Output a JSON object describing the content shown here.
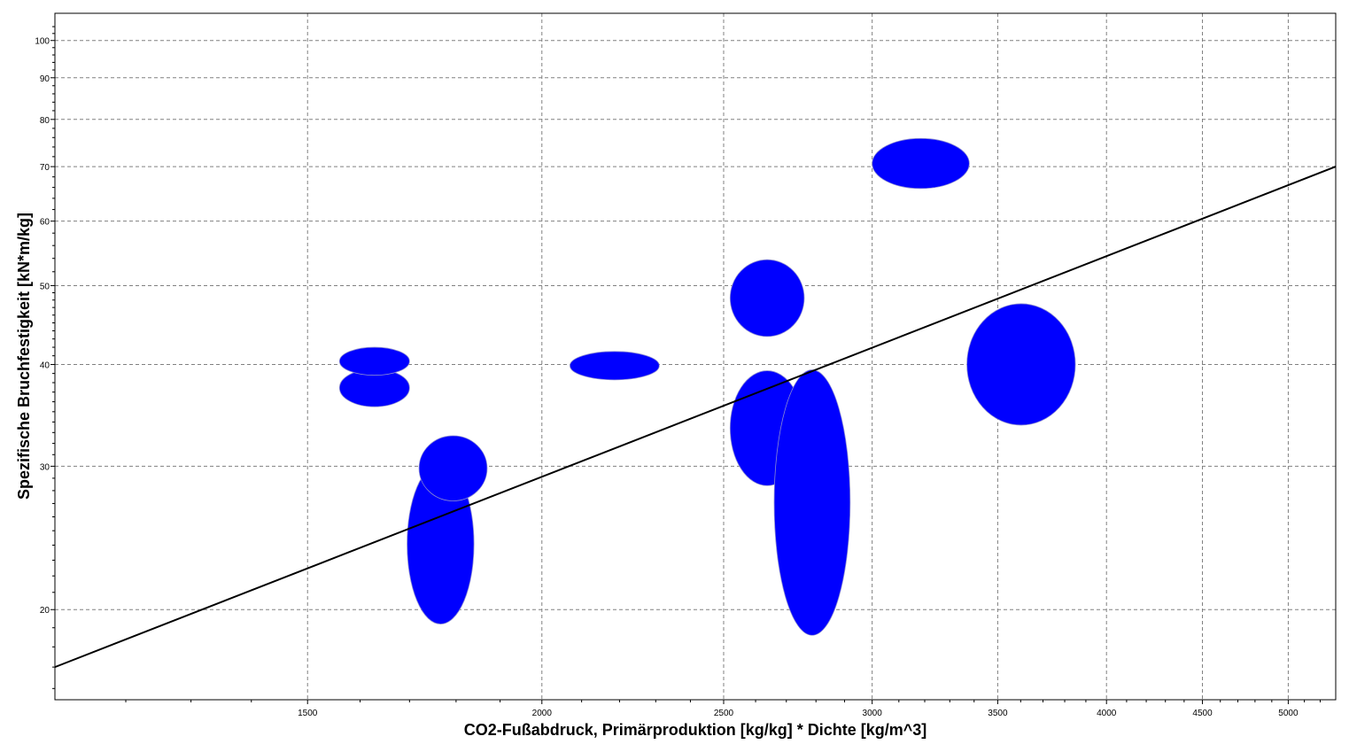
{
  "chart_data": {
    "type": "scatter",
    "title": "",
    "xlabel": "CO2-Fußabdruck, Primärproduktion [kg/kg] * Dichte [kg/m^3]",
    "ylabel": "Spezifische Bruchfestigkeit [kN*m/kg]",
    "x_scale": "log",
    "y_scale": "log",
    "xlim": [
      1100,
      5300
    ],
    "ylim": [
      15.5,
      108
    ],
    "x_ticks": [
      1500,
      2000,
      2500,
      3000,
      3500,
      4000,
      4500,
      5000
    ],
    "x_tick_labels": [
      "1500",
      "2000",
      "2500",
      "3000",
      "3500",
      "4000",
      "4500",
      "5000"
    ],
    "y_ticks": [
      20,
      30,
      40,
      50,
      60,
      70,
      80,
      90,
      100
    ],
    "y_tick_labels": [
      "20",
      "30",
      "40",
      "50",
      "60",
      "70",
      "80",
      "90",
      "100"
    ],
    "grid": true,
    "legend": "none",
    "colors": {
      "bubble": "#0000ff",
      "bubble_edge": "#8c8cd0",
      "fit_line": "#000000",
      "grid": "#808080",
      "frame": "#000000"
    },
    "bubbles": [
      {
        "x_range": [
          1560,
          1700
        ],
        "y_range": [
          35.5,
          39.5
        ]
      },
      {
        "x_range": [
          1560,
          1700
        ],
        "y_range": [
          38.8,
          42.0
        ]
      },
      {
        "x_range": [
          1695,
          1840
        ],
        "y_range": [
          19.2,
          30.2
        ]
      },
      {
        "x_range": [
          1720,
          1870
        ],
        "y_range": [
          27.2,
          32.7
        ]
      },
      {
        "x_range": [
          2070,
          2310
        ],
        "y_range": [
          38.3,
          41.5
        ]
      },
      {
        "x_range": [
          2520,
          2760
        ],
        "y_range": [
          28.4,
          39.3
        ]
      },
      {
        "x_range": [
          2520,
          2760
        ],
        "y_range": [
          43.3,
          53.8
        ]
      },
      {
        "x_range": [
          2660,
          2920
        ],
        "y_range": [
          18.6,
          39.4
        ]
      },
      {
        "x_range": [
          3000,
          3380
        ],
        "y_range": [
          65.8,
          75.8
        ]
      },
      {
        "x_range": [
          3370,
          3850
        ],
        "y_range": [
          33.7,
          47.5
        ]
      }
    ],
    "fit_line": {
      "x": [
        1100,
        5300
      ],
      "y": [
        17.0,
        70.0
      ]
    }
  }
}
